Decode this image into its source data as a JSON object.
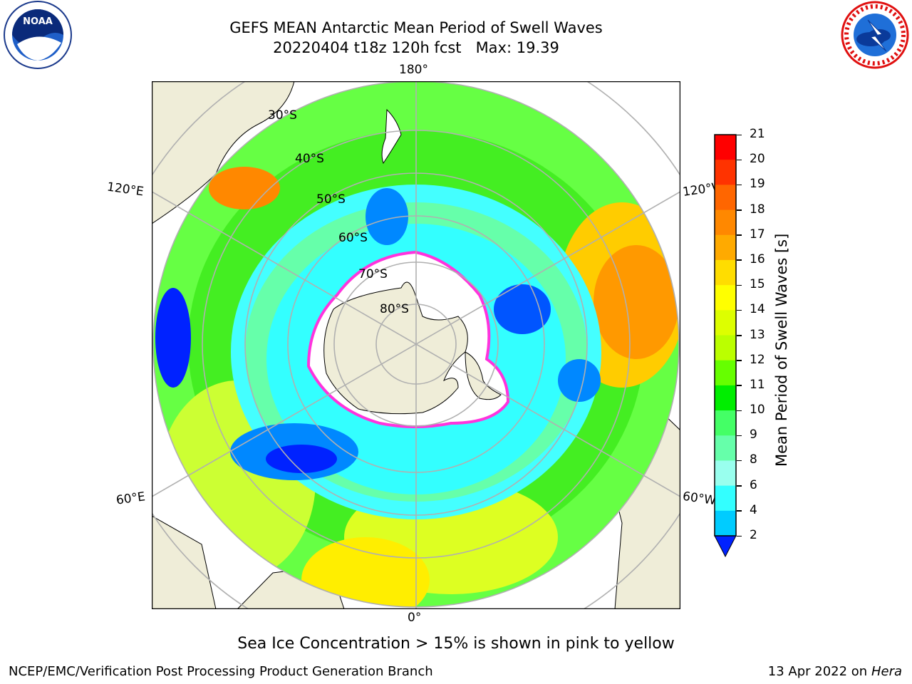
{
  "title": {
    "line1": "GEFS MEAN Antarctic Mean Period of Swell Waves",
    "line2": "20220404 t18z 120h fcst   Max: 19.39"
  },
  "logos": {
    "left": {
      "name": "noaa-logo",
      "text": "NOAA"
    },
    "right": {
      "name": "nws-logo"
    }
  },
  "map": {
    "longitude_labels": {
      "top": "180°",
      "bottom": "0°",
      "left_upper": "120°E",
      "left_lower": "60°E",
      "right_upper": "120°W",
      "right_lower": "60°W"
    },
    "latitude_labels": [
      "30°S",
      "40°S",
      "50°S",
      "60°S",
      "70°S",
      "80°S"
    ],
    "colors": {
      "land": "#efedd8",
      "ice": "#ffffff",
      "ice_edge": "#ff33dd",
      "grid": "#b0b0b0"
    }
  },
  "colorbar": {
    "label": "Mean Period of Swell Waves [s]",
    "ticks": [
      "21",
      "20",
      "19",
      "18",
      "17",
      "16",
      "15",
      "14",
      "13",
      "12",
      "11",
      "10",
      "9",
      "8",
      "6",
      "4",
      "2"
    ],
    "colors": [
      "#ff0000",
      "#ff3300",
      "#ff6600",
      "#ff8800",
      "#ffaa00",
      "#ffdd00",
      "#ffff00",
      "#ddff00",
      "#bbff00",
      "#66ff00",
      "#00ee00",
      "#44ff66",
      "#66ffaa",
      "#99ffee",
      "#33ffff",
      "#00ccff",
      "#0077ff",
      "#0022ff"
    ]
  },
  "note": "Sea Ice Concentration > 15% is shown in pink to yellow",
  "footer": {
    "left": "NCEP/EMC/Verification Post Processing Product Generation Branch",
    "right_prefix": "13 Apr 2022 on ",
    "right_host": "Hera"
  }
}
